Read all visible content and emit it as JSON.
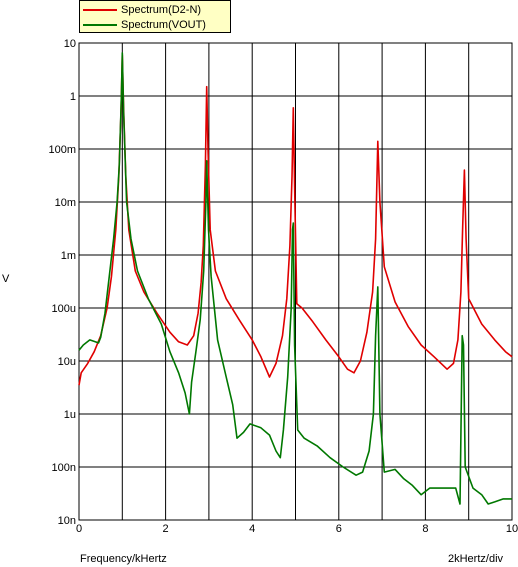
{
  "legend": {
    "items": [
      {
        "label": "Spectrum(D2-N)",
        "color": "#e00000"
      },
      {
        "label": "Spectrum(VOUT)",
        "color": "#007800"
      }
    ]
  },
  "footer": {
    "x_caption": "Frequency/kHertz",
    "scale_caption": "2kHertz/div"
  },
  "chart_data": {
    "type": "line",
    "xlabel": "Frequency/kHertz",
    "ylabel": "V",
    "xlim": [
      0,
      10
    ],
    "ylim": [
      1e-08,
      10
    ],
    "yscale": "log",
    "grid": true,
    "legend_position": "top-left",
    "x_ticks": [
      "0",
      "2",
      "4",
      "6",
      "8",
      "10"
    ],
    "y_ticks": [
      {
        "value": 10,
        "label": "10"
      },
      {
        "value": 1,
        "label": "1"
      },
      {
        "value": 0.1,
        "label": "100m"
      },
      {
        "value": 0.01,
        "label": "10m"
      },
      {
        "value": 0.001,
        "label": "1m"
      },
      {
        "value": 0.0001,
        "label": "100u"
      },
      {
        "value": 1e-05,
        "label": "10u"
      },
      {
        "value": 1e-06,
        "label": "1u"
      },
      {
        "value": 1e-07,
        "label": "100n"
      },
      {
        "value": 1e-08,
        "label": "10n"
      }
    ],
    "series": [
      {
        "name": "Spectrum(D2-N)",
        "color": "#e00000",
        "points": [
          [
            0,
            3.5e-06
          ],
          [
            0.05,
            6e-06
          ],
          [
            0.2,
            9e-06
          ],
          [
            0.35,
            1.5e-05
          ],
          [
            0.5,
            3e-05
          ],
          [
            0.65,
            0.0001
          ],
          [
            0.75,
            0.0004
          ],
          [
            0.85,
            0.003
          ],
          [
            0.92,
            0.03
          ],
          [
            0.97,
            0.5
          ],
          [
            1.0,
            6
          ],
          [
            1.03,
            0.6
          ],
          [
            1.08,
            0.03
          ],
          [
            1.15,
            0.003
          ],
          [
            1.3,
            0.0005
          ],
          [
            1.5,
            0.0002
          ],
          [
            1.8,
            8e-05
          ],
          [
            2.1,
            3.5e-05
          ],
          [
            2.3,
            2.3e-05
          ],
          [
            2.5,
            2e-05
          ],
          [
            2.65,
            3e-05
          ],
          [
            2.75,
            8e-05
          ],
          [
            2.82,
            0.0003
          ],
          [
            2.87,
            0.0015
          ],
          [
            2.92,
            0.05
          ],
          [
            2.95,
            1.5
          ],
          [
            2.98,
            0.1
          ],
          [
            3.03,
            0.003
          ],
          [
            3.15,
            0.0005
          ],
          [
            3.4,
            0.00015
          ],
          [
            3.7,
            6e-05
          ],
          [
            4.0,
            2.5e-05
          ],
          [
            4.2,
            1.2e-05
          ],
          [
            4.4,
            5e-06
          ],
          [
            4.55,
            9e-06
          ],
          [
            4.7,
            3e-05
          ],
          [
            4.8,
            0.00015
          ],
          [
            4.87,
            0.0015
          ],
          [
            4.92,
            0.03
          ],
          [
            4.95,
            0.6
          ],
          [
            4.98,
            0.02
          ],
          [
            5.03,
            0.00012
          ],
          [
            5.15,
            0.0001
          ],
          [
            5.4,
            5.5e-05
          ],
          [
            5.7,
            2.5e-05
          ],
          [
            6.0,
            1.2e-05
          ],
          [
            6.2,
            7e-06
          ],
          [
            6.35,
            6e-06
          ],
          [
            6.5,
            1e-05
          ],
          [
            6.65,
            3.5e-05
          ],
          [
            6.78,
            0.0002
          ],
          [
            6.85,
            0.002
          ],
          [
            6.9,
            0.14
          ],
          [
            6.95,
            0.01
          ],
          [
            7.05,
            0.0006
          ],
          [
            7.3,
            0.00013
          ],
          [
            7.6,
            4.5e-05
          ],
          [
            7.9,
            2e-05
          ],
          [
            8.2,
            1.2e-05
          ],
          [
            8.5,
            7e-06
          ],
          [
            8.65,
            9e-06
          ],
          [
            8.75,
            2.5e-05
          ],
          [
            8.82,
            0.0002
          ],
          [
            8.86,
            0.003
          ],
          [
            8.9,
            0.04
          ],
          [
            8.94,
            0.002
          ],
          [
            9.0,
            0.00015
          ],
          [
            9.3,
            5e-05
          ],
          [
            9.6,
            2.5e-05
          ],
          [
            9.85,
            1.5e-05
          ],
          [
            10,
            1.2e-05
          ]
        ]
      },
      {
        "name": "Spectrum(VOUT)",
        "color": "#007800",
        "points": [
          [
            0,
            1.6e-05
          ],
          [
            0.1,
            2e-05
          ],
          [
            0.25,
            2.5e-05
          ],
          [
            0.45,
            2.2e-05
          ],
          [
            0.5,
            2.8e-05
          ],
          [
            0.6,
            8e-05
          ],
          [
            0.7,
            0.0004
          ],
          [
            0.8,
            0.002
          ],
          [
            0.88,
            0.01
          ],
          [
            0.93,
            0.05
          ],
          [
            0.98,
            1
          ],
          [
            1.0,
            6.5
          ],
          [
            1.03,
            0.5
          ],
          [
            1.1,
            0.01
          ],
          [
            1.2,
            0.002
          ],
          [
            1.35,
            0.0005
          ],
          [
            1.6,
            0.00015
          ],
          [
            1.9,
            5e-05
          ],
          [
            2.1,
            1.5e-05
          ],
          [
            2.3,
            6e-06
          ],
          [
            2.45,
            2.5e-06
          ],
          [
            2.55,
            1e-06
          ],
          [
            2.6,
            4e-06
          ],
          [
            2.7,
            1.5e-05
          ],
          [
            2.8,
            6e-05
          ],
          [
            2.88,
            0.0005
          ],
          [
            2.93,
            0.01
          ],
          [
            2.95,
            0.06
          ],
          [
            2.99,
            0.003
          ],
          [
            3.05,
            0.0004
          ],
          [
            3.2,
            2.5e-05
          ],
          [
            3.4,
            5e-06
          ],
          [
            3.55,
            1.5e-06
          ],
          [
            3.65,
            3.5e-07
          ],
          [
            3.8,
            4.5e-07
          ],
          [
            3.95,
            6.5e-07
          ],
          [
            4.2,
            5.5e-07
          ],
          [
            4.4,
            4e-07
          ],
          [
            4.55,
            2e-07
          ],
          [
            4.65,
            1.5e-07
          ],
          [
            4.72,
            5e-07
          ],
          [
            4.82,
            5e-06
          ],
          [
            4.9,
            0.0001
          ],
          [
            4.93,
            0.003
          ],
          [
            4.95,
            0.004
          ],
          [
            4.98,
            2e-05
          ],
          [
            5.05,
            5e-07
          ],
          [
            5.2,
            3.5e-07
          ],
          [
            5.5,
            2.5e-07
          ],
          [
            5.8,
            1.5e-07
          ],
          [
            6.1,
            1e-07
          ],
          [
            6.4,
            7e-08
          ],
          [
            6.55,
            8e-08
          ],
          [
            6.7,
            2e-07
          ],
          [
            6.8,
            1e-06
          ],
          [
            6.85,
            3e-05
          ],
          [
            6.9,
            0.00025
          ],
          [
            6.95,
            1e-06
          ],
          [
            7.05,
            8e-08
          ],
          [
            7.3,
            9e-08
          ],
          [
            7.5,
            6e-08
          ],
          [
            7.7,
            4.5e-08
          ],
          [
            7.9,
            3e-08
          ],
          [
            8.1,
            4e-08
          ],
          [
            8.4,
            4e-08
          ],
          [
            8.7,
            4e-08
          ],
          [
            8.8,
            2e-08
          ],
          [
            8.85,
            3e-05
          ],
          [
            8.88,
            2e-05
          ],
          [
            8.92,
            1e-07
          ],
          [
            9.1,
            4e-08
          ],
          [
            9.3,
            3e-08
          ],
          [
            9.45,
            2e-08
          ],
          [
            9.6,
            2.2e-08
          ],
          [
            9.8,
            2.5e-08
          ],
          [
            10,
            2.5e-08
          ]
        ]
      }
    ]
  }
}
